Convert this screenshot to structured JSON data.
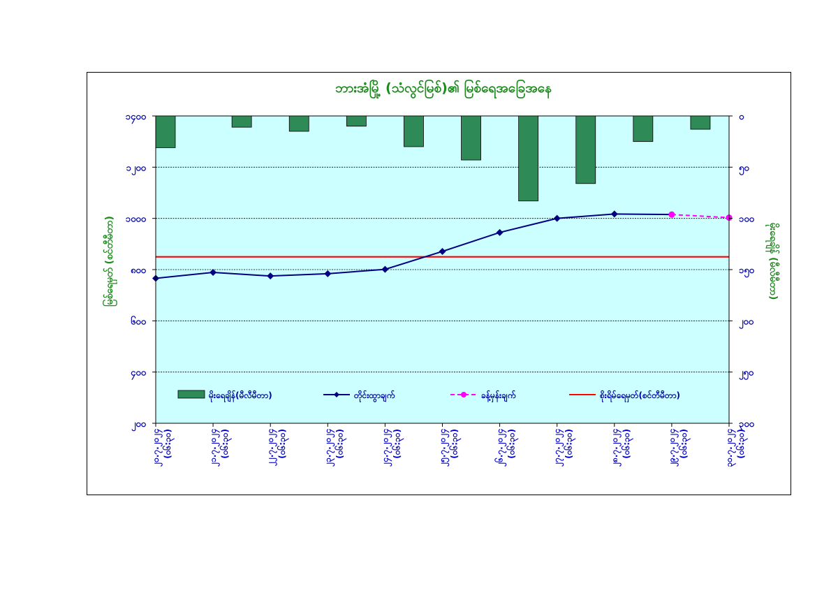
{
  "chart_data": {
    "type": "bar+line",
    "title": "ဘားအံမြို့ (သံလွင်မြစ်)၏ မြစ်ရေအခြေအနေ",
    "left_axis": {
      "label": "မြစ်ရေမှတ် (စင်တီမီတာ)",
      "ticks": [
        "၂၀၀",
        "၄၀၀",
        "၆၀၀",
        "၈၀၀",
        "၁၀၀၀",
        "၁၂၀၀",
        "၁၄၀၀"
      ],
      "tick_values": [
        200,
        400,
        600,
        800,
        1000,
        1200,
        1400
      ],
      "range": [
        200,
        1400
      ]
    },
    "right_axis": {
      "label": "မိုးရေချိန် (မီလီမီတာ)",
      "ticks": [
        "၀",
        "၅၀",
        "၁၀၀",
        "၁၅၀",
        "၂၀၀",
        "၂၅၀",
        "၃၀၀"
      ],
      "tick_values": [
        0,
        50,
        100,
        150,
        200,
        250,
        300
      ],
      "range": [
        300,
        0
      ],
      "inverted": true
    },
    "categories": [
      "၂၀.၇.၂၀၂၄\n(၀၆:၃၀)",
      "၂၁.၇.၂၀၂၄\n(၀၆:၃၀)",
      "၂၂.၇.၂၀၂၄\n(၀၆:၃၀)",
      "၂၃.၇.၂၀၂၄\n(၀၆:၃၀)",
      "၂၄.၇.၂၀၂၄\n(၀၆:၃၀)",
      "၂၅.၇.၂၀၂၄\n(၀၆:၃၀)",
      "၂၆.၇.၂၀၂၄\n(၀၆:၃၀)",
      "၂၇.၇.၂၀၂၄\n(၀၆:၃၀)",
      "၂၈.၇.၂၀၂၄\n(၀၆:၃၀)",
      "၂၉.၇.၂၀၂၄\n(၀၆:၃၀)",
      "၃၀.၇.၂၀၂၄\n(၀၆:၃၀)"
    ],
    "series": [
      {
        "name": "မိုးရေချိန်(မီလီမီတာ)",
        "kind": "bar",
        "axis": "right",
        "color": "#2e8b57",
        "values": [
          31,
          11,
          15,
          10,
          30,
          43,
          83,
          66,
          25,
          13,
          null
        ]
      },
      {
        "name": "တိုင်းထွာချက်",
        "kind": "line",
        "axis": "left",
        "color": "#000080",
        "marker": "diamond",
        "values": [
          766,
          789,
          775,
          784,
          801,
          871,
          945,
          1000,
          1017,
          null,
          null
        ]
      },
      {
        "name": "ခန့်မှန်းချက်",
        "kind": "line",
        "axis": "left",
        "color": "#ff00ff",
        "dashed": true,
        "marker": "circle",
        "values": [
          null,
          null,
          null,
          null,
          null,
          null,
          null,
          null,
          null,
          1015,
          1003
        ]
      },
      {
        "name": "စိုးရိမ်ရေမှတ်(စင်တီမီတာ)",
        "kind": "hline",
        "axis": "left",
        "color": "#ff0000",
        "value": 850
      }
    ],
    "connected_points": [
      {
        "category_index": 9,
        "value": 1015
      }
    ],
    "grid": true,
    "plot_background": "#ccffff",
    "legend_position": "inside-bottom"
  }
}
